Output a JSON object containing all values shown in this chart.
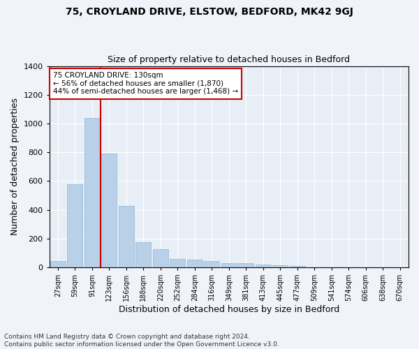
{
  "title1": "75, CROYLAND DRIVE, ELSTOW, BEDFORD, MK42 9GJ",
  "title2": "Size of property relative to detached houses in Bedford",
  "xlabel": "Distribution of detached houses by size in Bedford",
  "ylabel": "Number of detached properties",
  "footer": "Contains HM Land Registry data © Crown copyright and database right 2024.\nContains public sector information licensed under the Open Government Licence v3.0.",
  "categories": [
    "27sqm",
    "59sqm",
    "91sqm",
    "123sqm",
    "156sqm",
    "188sqm",
    "220sqm",
    "252sqm",
    "284sqm",
    "316sqm",
    "349sqm",
    "381sqm",
    "413sqm",
    "445sqm",
    "477sqm",
    "509sqm",
    "541sqm",
    "574sqm",
    "606sqm",
    "638sqm",
    "670sqm"
  ],
  "values": [
    45,
    575,
    1040,
    790,
    425,
    175,
    128,
    60,
    55,
    45,
    28,
    28,
    20,
    15,
    10,
    0,
    0,
    0,
    0,
    0,
    0
  ],
  "bar_color": "#b8d0e8",
  "bar_edge_color": "#90b8d8",
  "vline_color": "#cc0000",
  "annotation_text": "75 CROYLAND DRIVE: 130sqm\n← 56% of detached houses are smaller (1,870)\n44% of semi-detached houses are larger (1,468) →",
  "annotation_box_color": "#ffffff",
  "annotation_box_edge": "#cc0000",
  "ylim": [
    0,
    1400
  ],
  "yticks": [
    0,
    200,
    400,
    600,
    800,
    1000,
    1200,
    1400
  ],
  "bg_color": "#f0f4fa",
  "plot_bg_color": "#e8eef6",
  "grid_color": "#ffffff",
  "title1_fontsize": 10,
  "title2_fontsize": 9,
  "xlabel_fontsize": 9,
  "ylabel_fontsize": 9,
  "tick_fontsize": 7,
  "footer_fontsize": 6.5,
  "annotation_fontsize": 7.5
}
